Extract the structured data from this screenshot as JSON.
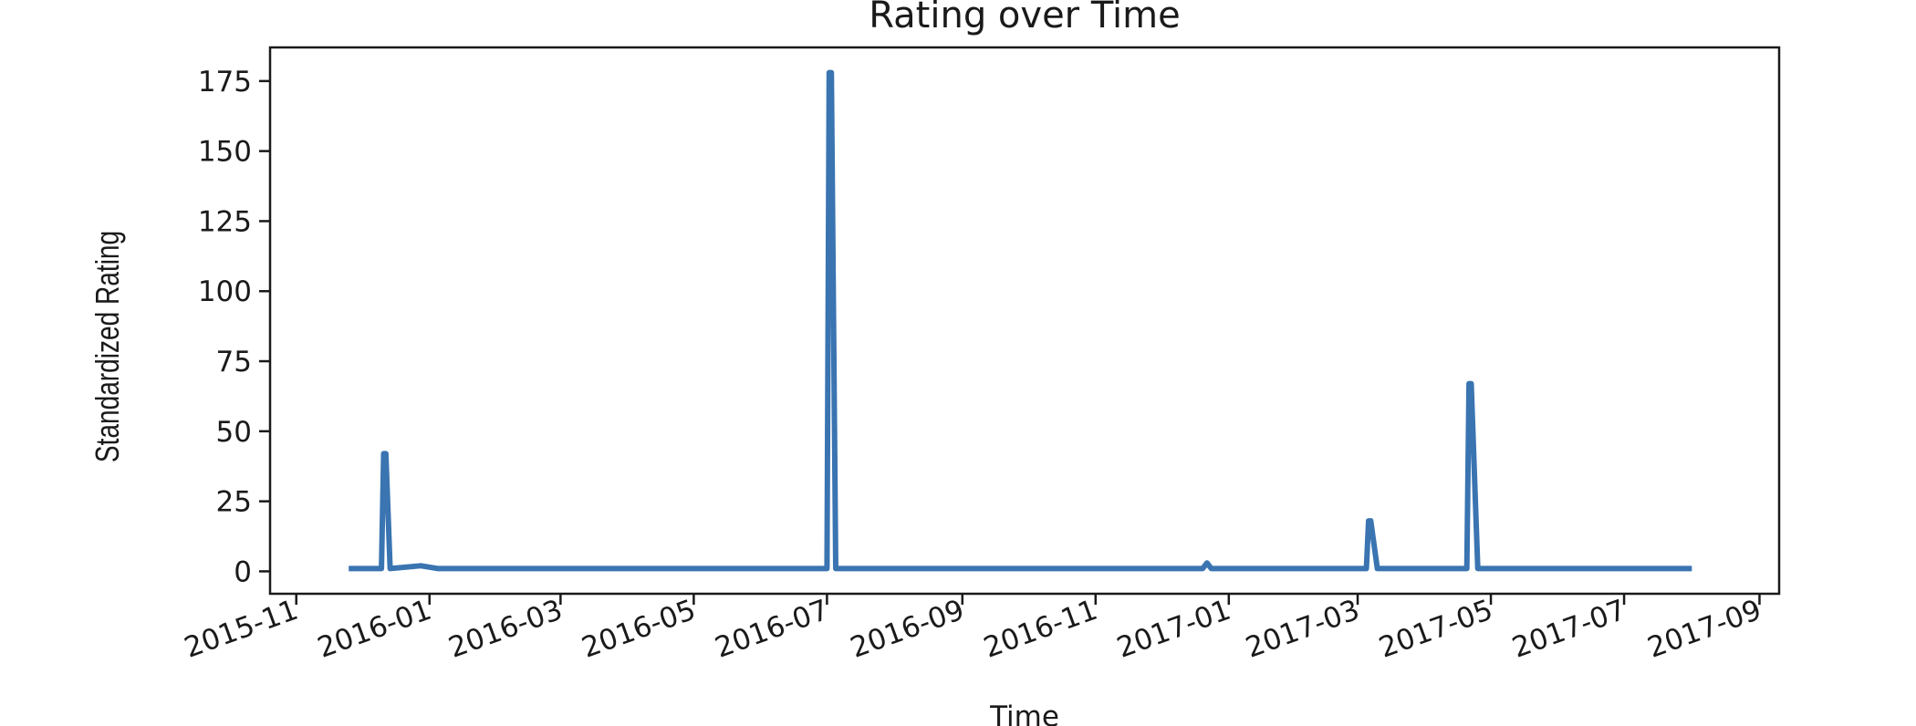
{
  "chart_data": {
    "type": "line",
    "title": "Rating over Time",
    "xlabel": "Time",
    "ylabel": "Standardized Rating",
    "x_ticks": [
      "2015-11",
      "2016-01",
      "2016-03",
      "2016-05",
      "2016-07",
      "2016-09",
      "2016-11",
      "2017-01",
      "2017-03",
      "2017-05",
      "2017-07",
      "2017-09"
    ],
    "y_ticks": [
      0,
      25,
      50,
      75,
      100,
      125,
      150,
      175
    ],
    "xlim": [
      "2015-10-20",
      "2017-09-10"
    ],
    "ylim": [
      -8,
      187
    ],
    "grid": false,
    "color": "#3a74b1",
    "series": [
      {
        "x": [
          "2015-11-25",
          "2015-12-10",
          "2015-12-11",
          "2015-12-12",
          "2015-12-14",
          "2015-12-28",
          "2016-01-05",
          "2016-03-01",
          "2016-05-01",
          "2016-07-01",
          "2016-07-02",
          "2016-07-03",
          "2016-07-05",
          "2016-08-01",
          "2016-12-20",
          "2016-12-22",
          "2016-12-24",
          "2017-01-10",
          "2017-03-01",
          "2017-03-05",
          "2017-03-06",
          "2017-03-07",
          "2017-03-10",
          "2017-04-20",
          "2017-04-21",
          "2017-04-22",
          "2017-04-25",
          "2017-06-01",
          "2017-08-01"
        ],
        "y": [
          1,
          1,
          42,
          42,
          1,
          2,
          1,
          1,
          1,
          1,
          178,
          178,
          1,
          1,
          1,
          3,
          1,
          1,
          1,
          1,
          18,
          18,
          1,
          1,
          67,
          67,
          1,
          1,
          1
        ]
      }
    ]
  }
}
